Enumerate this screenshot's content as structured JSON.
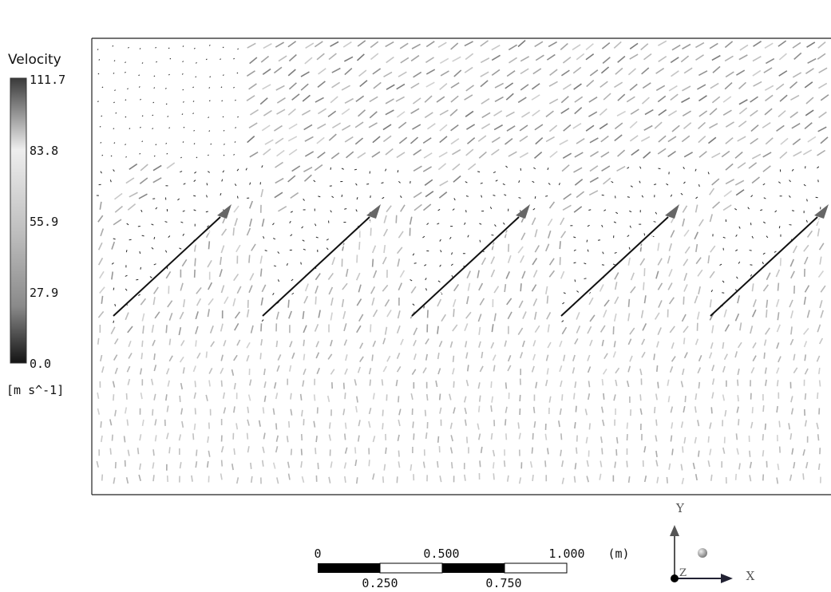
{
  "legend": {
    "title": "Velocity",
    "ticks": [
      "111.7",
      "83.8",
      "55.9",
      "27.9",
      "0.0"
    ],
    "unit": "[m s^-1]"
  },
  "scale_bar": {
    "top_labels": [
      "0",
      "0.500",
      "1.000"
    ],
    "unit": "(m)",
    "bottom_labels": [
      "0.250",
      "0.750"
    ]
  },
  "axes": {
    "y": "Y",
    "x": "X",
    "z": "Z"
  }
}
